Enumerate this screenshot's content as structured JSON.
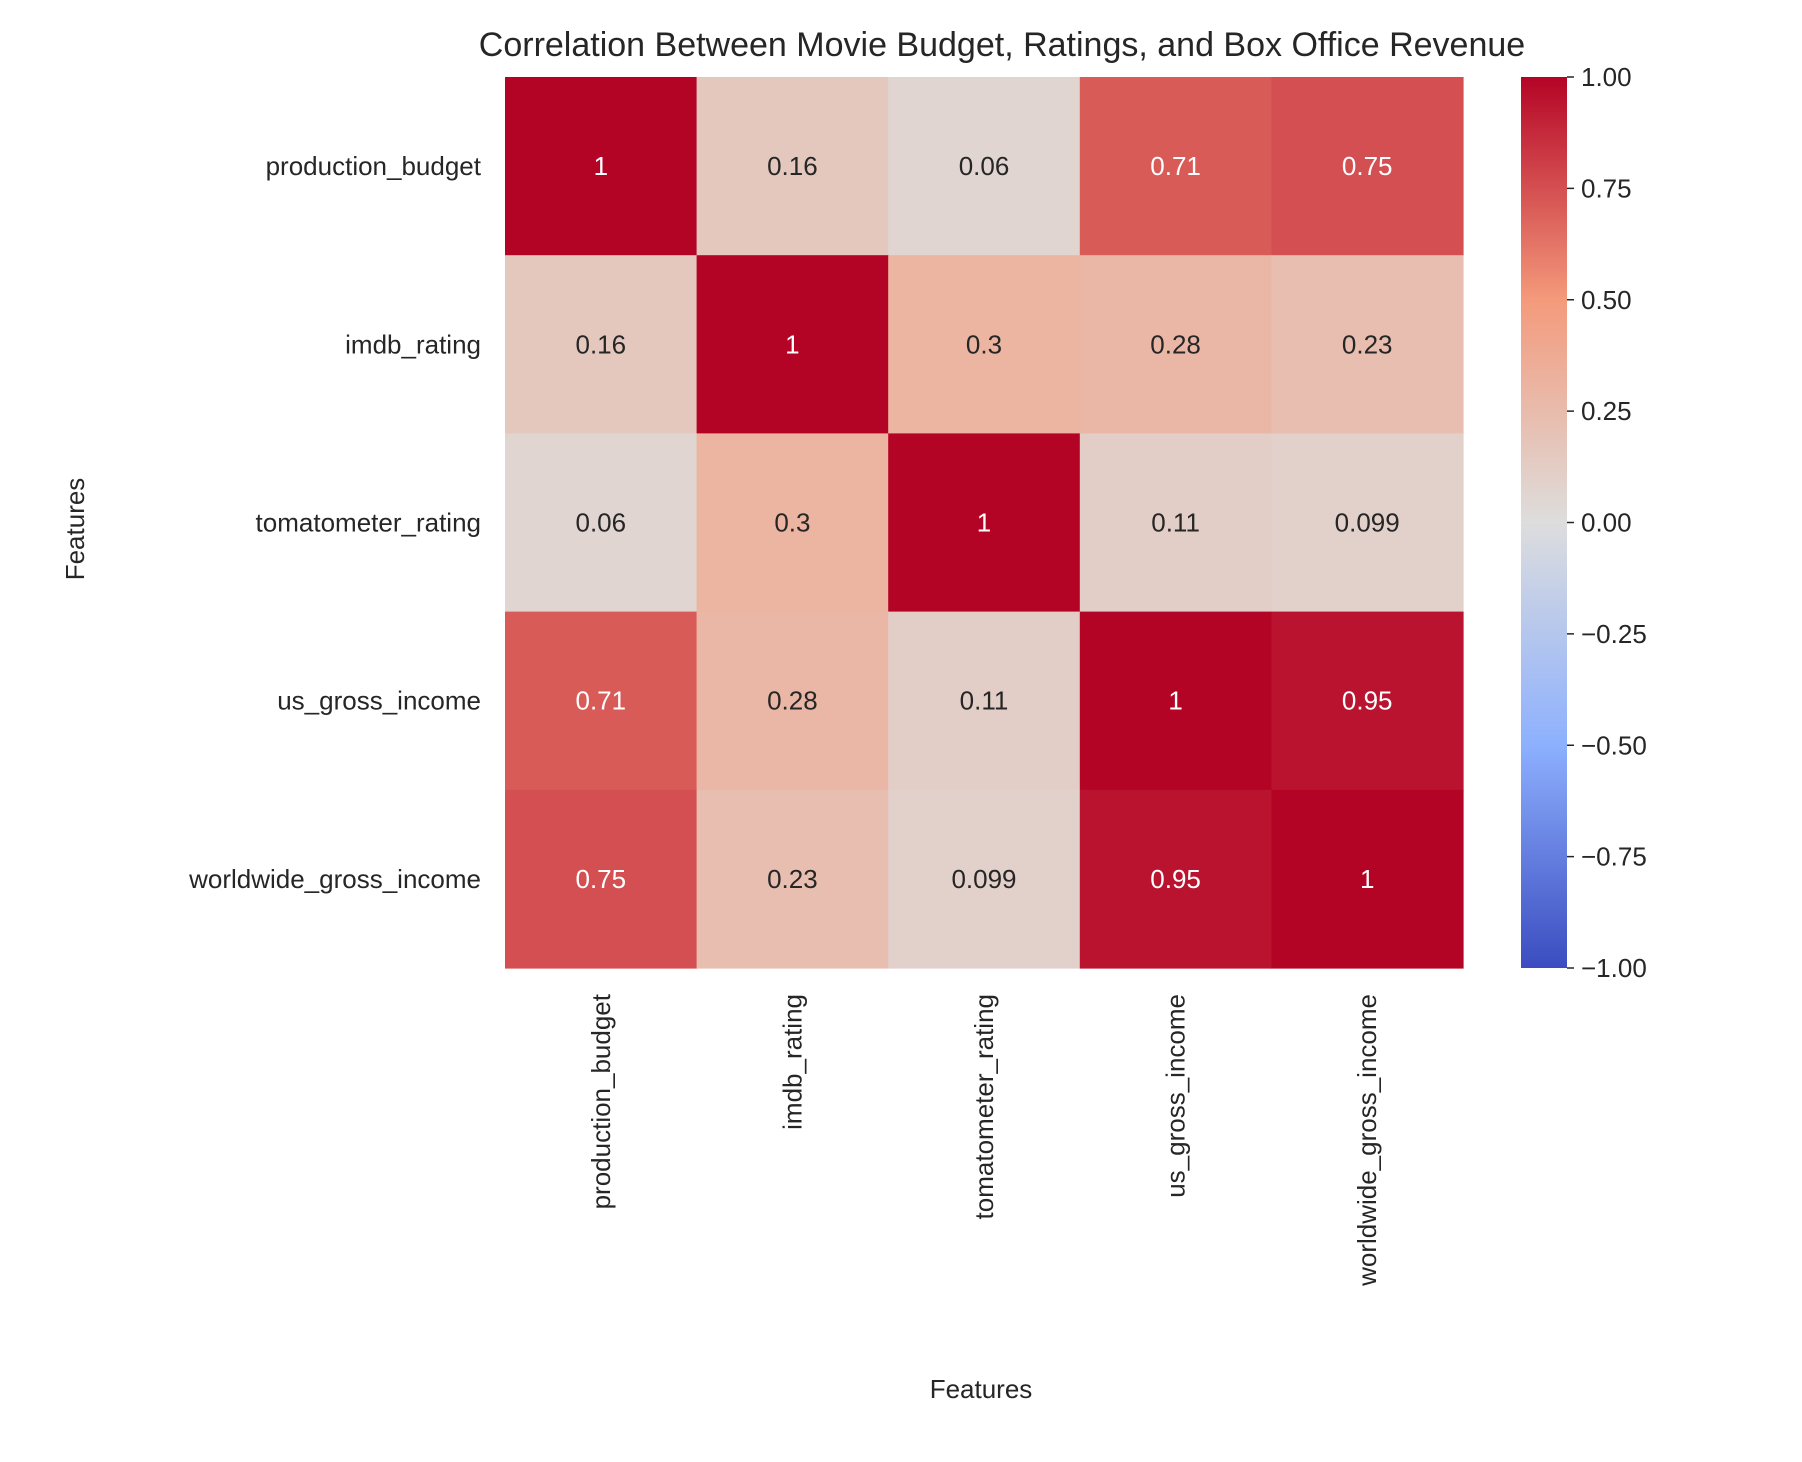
{
  "chart_data": {
    "type": "heatmap",
    "title": "Correlation Between Movie Budget, Ratings, and Box Office Revenue",
    "xlabel": "Features",
    "ylabel": "Features",
    "rows": [
      "production_budget",
      "imdb_rating",
      "tomatometer_rating",
      "us_gross_income",
      "worldwide_gross_income"
    ],
    "columns": [
      "production_budget",
      "imdb_rating",
      "tomatometer_rating",
      "us_gross_income",
      "worldwide_gross_income"
    ],
    "values": [
      [
        1,
        0.16,
        0.06,
        0.71,
        0.75
      ],
      [
        0.16,
        1,
        0.3,
        0.28,
        0.23
      ],
      [
        0.06,
        0.3,
        1,
        0.11,
        0.099
      ],
      [
        0.71,
        0.28,
        0.11,
        1,
        0.95
      ],
      [
        0.75,
        0.23,
        0.099,
        0.95,
        1
      ]
    ],
    "annotations": [
      [
        "1",
        "0.16",
        "0.06",
        "0.71",
        "0.75"
      ],
      [
        "0.16",
        "1",
        "0.3",
        "0.28",
        "0.23"
      ],
      [
        "0.06",
        "0.3",
        "1",
        "0.11",
        "0.099"
      ],
      [
        "0.71",
        "0.28",
        "0.11",
        "1",
        "0.95"
      ],
      [
        "0.75",
        "0.23",
        "0.099",
        "0.95",
        "1"
      ]
    ],
    "colormap": "coolwarm",
    "vmin": -1,
    "vmax": 1,
    "colorbar_ticks": [
      "1.00",
      "0.75",
      "0.50",
      "0.25",
      "0.00",
      "−0.25",
      "−0.50",
      "−0.75",
      "−1.00"
    ],
    "colorbar_tick_values": [
      1,
      0.75,
      0.5,
      0.25,
      0,
      -0.25,
      -0.5,
      -0.75,
      -1
    ],
    "colors": {
      "low": "#3b4cc0",
      "mid": "#dddddd",
      "high": "#b40426",
      "text_dark": "#262626",
      "text_light": "#ffffff"
    },
    "grid": false,
    "legend": "colorbar-right"
  }
}
